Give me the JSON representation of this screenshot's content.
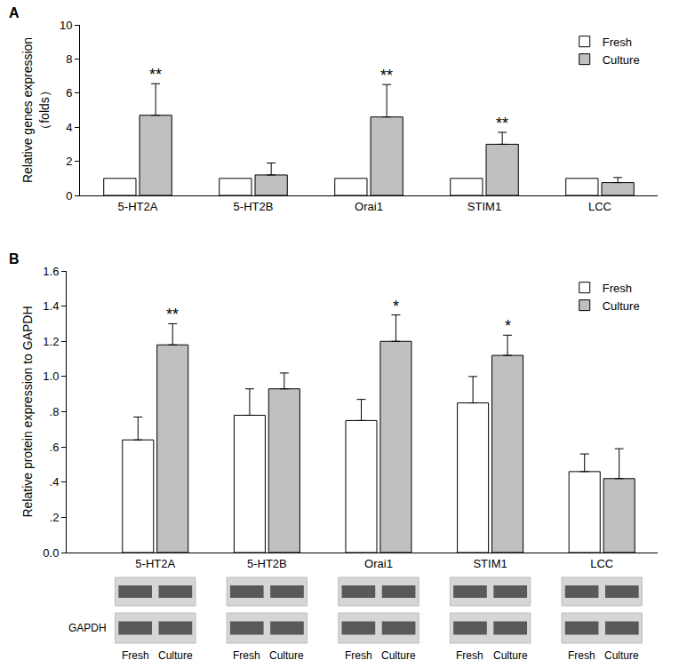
{
  "chart_data": [
    {
      "type": "bar",
      "title": "A",
      "y_label": "Relative genes expression\n（folds）",
      "categories": [
        "5-HT2A",
        "5-HT2B",
        "Orai1",
        "STIM1",
        "LCC"
      ],
      "series": [
        {
          "name": "Fresh",
          "color": "#ffffff",
          "values": [
            1,
            1,
            1,
            1,
            1
          ]
        },
        {
          "name": "Culture",
          "color": "#c0c0c0",
          "values": [
            4.7,
            1.2,
            4.6,
            3.0,
            0.75
          ],
          "errors": [
            1.85,
            0.7,
            1.9,
            0.7,
            0.3
          ]
        }
      ],
      "ylim": [
        0,
        10
      ],
      "yticks": [
        0,
        2,
        4,
        6,
        8,
        10
      ],
      "grid": false,
      "legend": "top right",
      "annotations": [
        {
          "category": "5-HT2A",
          "series": "Culture",
          "text": "**"
        },
        {
          "category": "Orai1",
          "series": "Culture",
          "text": "**"
        },
        {
          "category": "STIM1",
          "series": "Culture",
          "text": "**"
        }
      ]
    },
    {
      "type": "bar",
      "title": "B",
      "y_label": "Relative protein expression to GAPDH",
      "categories": [
        "5-HT2A",
        "5-HT2B",
        "Orai1",
        "STIM1",
        "LCC"
      ],
      "series": [
        {
          "name": "Fresh",
          "color": "#ffffff",
          "values": [
            0.64,
            0.78,
            0.75,
            0.85,
            0.46
          ],
          "errors": [
            0.13,
            0.15,
            0.12,
            0.15,
            0.1
          ]
        },
        {
          "name": "Culture",
          "color": "#c0c0c0",
          "values": [
            1.18,
            0.93,
            1.2,
            1.12,
            0.42
          ],
          "errors": [
            0.12,
            0.09,
            0.15,
            0.115,
            0.17
          ]
        }
      ],
      "ylim": [
        0,
        1.6
      ],
      "yticks": [
        {
          "value": 0,
          "label": "0.0"
        },
        {
          "value": 0.2,
          "label": ".2"
        },
        {
          "value": 0.4,
          "label": ".4"
        },
        {
          "value": 0.6,
          "label": ".6"
        },
        {
          "value": 0.8,
          "label": ".8"
        },
        {
          "value": 1,
          "label": "1.0"
        },
        1.2,
        1.4,
        1.6
      ],
      "grid": false,
      "legend": "top right",
      "annotations": [
        {
          "category": "5-HT2A",
          "series": "Culture",
          "text": "**"
        },
        {
          "category": "Orai1",
          "series": "Culture",
          "text": "*"
        },
        {
          "category": "STIM1",
          "series": "Culture",
          "text": "*"
        }
      ],
      "blot": {
        "loading_control": "GAPDH",
        "lanes": [
          "Fresh",
          "Culture"
        ]
      }
    }
  ]
}
